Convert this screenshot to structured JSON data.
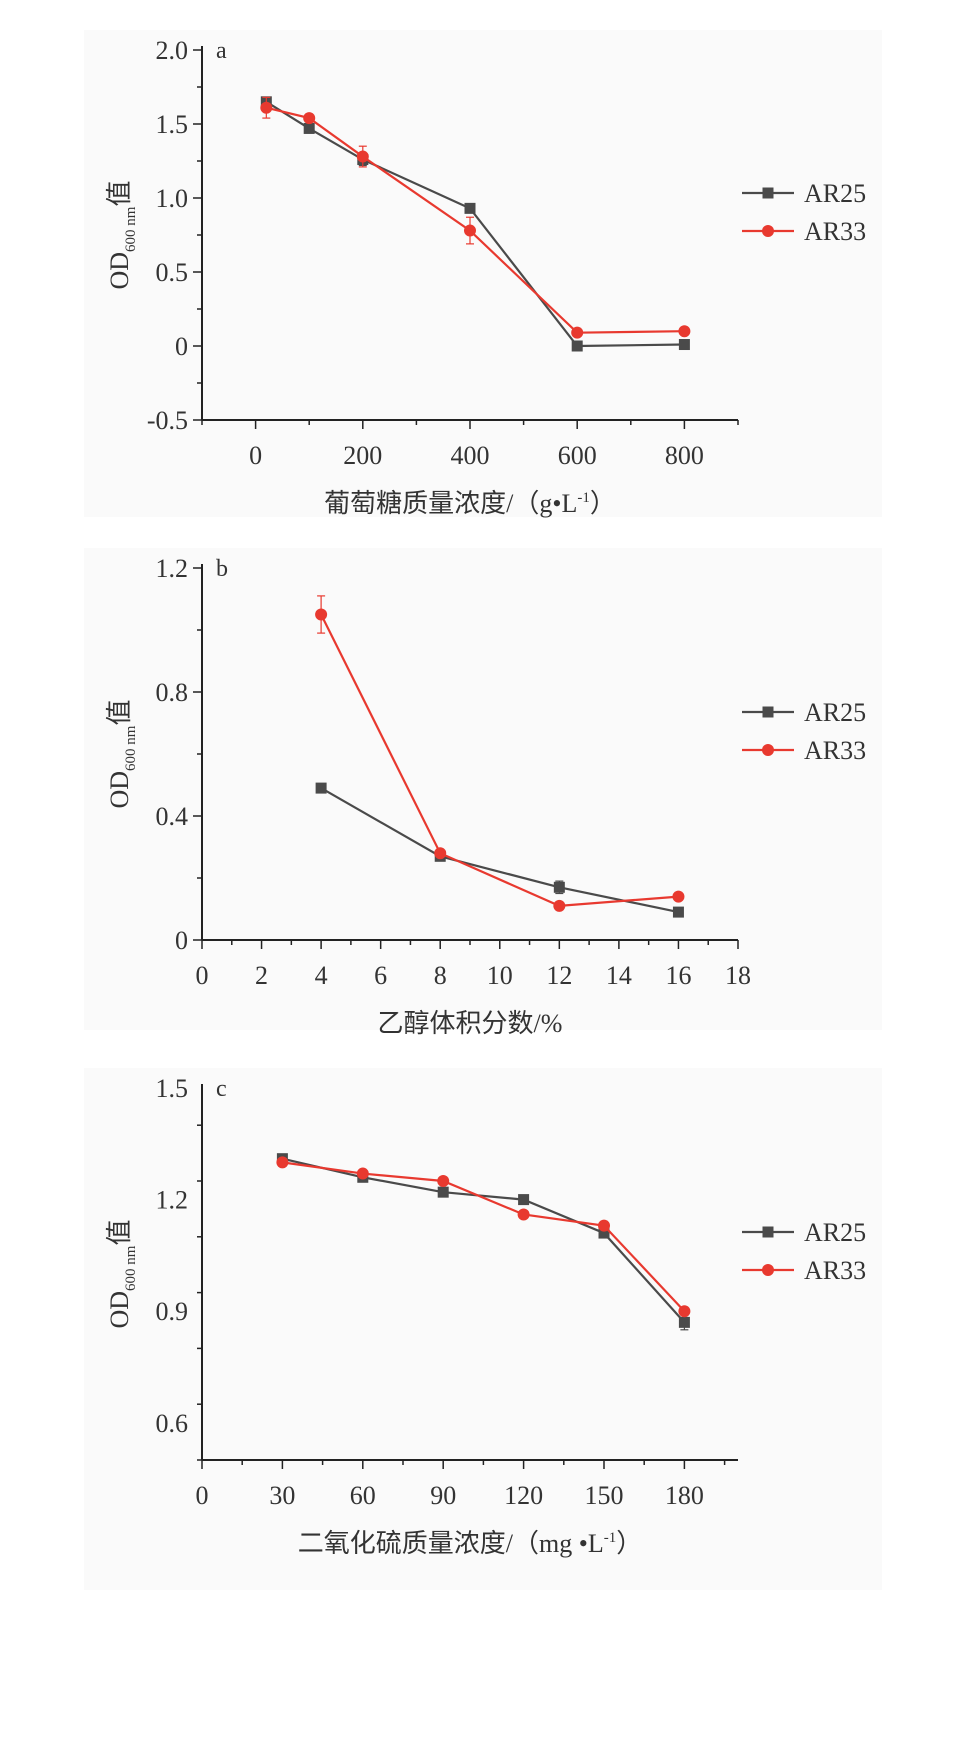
{
  "colors": {
    "AR25": "#4a4a4a",
    "AR33": "#e8392f",
    "panel_bg": "#fafafa",
    "axis": "#222222"
  },
  "chart_data": [
    {
      "type": "line",
      "panel_label": "a",
      "xlabel": "葡萄糖质量浓度/（g•L",
      "xlabel_sup": "-1",
      "xlabel_end": "）",
      "ylabel_main": "OD",
      "ylabel_sub": "600 nm",
      "ylabel_end": "值",
      "xlim": [
        -100,
        900
      ],
      "ylim": [
        -0.5,
        2.0
      ],
      "xticks": [
        0,
        200,
        400,
        600,
        800
      ],
      "xtick_labels": [
        "0",
        "200",
        "400",
        "600",
        "800"
      ],
      "xminor": 100,
      "yticks": [
        -0.5,
        0,
        0.5,
        1.0,
        1.5,
        2.0
      ],
      "ytick_labels": [
        "-0.5",
        "0",
        "0.5",
        "1.0",
        "1.5",
        "2.0"
      ],
      "yminor": 0.25,
      "grid": false,
      "legend": "right",
      "x": [
        20,
        100,
        200,
        400,
        600,
        800
      ],
      "series": [
        {
          "name": "AR25",
          "marker": "square",
          "values": [
            1.65,
            1.47,
            1.26,
            0.93,
            0.0,
            0.01
          ],
          "errors": [
            0.03,
            0.02,
            0.04,
            0.03,
            0.01,
            0.01
          ]
        },
        {
          "name": "AR33",
          "marker": "circle",
          "values": [
            1.61,
            1.54,
            1.28,
            0.78,
            0.09,
            0.1
          ],
          "errors": [
            0.07,
            0.02,
            0.07,
            0.09,
            0.01,
            0.01
          ]
        }
      ]
    },
    {
      "type": "line",
      "panel_label": "b",
      "xlabel": "乙醇体积分数/%",
      "xlabel_sup": "",
      "xlabel_end": "",
      "ylabel_main": "OD",
      "ylabel_sub": "600 nm",
      "ylabel_end": "值",
      "xlim": [
        0,
        18
      ],
      "ylim": [
        0,
        1.2
      ],
      "xticks": [
        0,
        2,
        4,
        6,
        8,
        10,
        12,
        14,
        16,
        18
      ],
      "xtick_labels": [
        "0",
        "2",
        "4",
        "6",
        "8",
        "10",
        "12",
        "14",
        "16",
        "18"
      ],
      "xminor": 1,
      "yticks": [
        0,
        0.4,
        0.8,
        1.2
      ],
      "ytick_labels": [
        "0",
        "0.4",
        "0.8",
        "1.2"
      ],
      "yminor": 0.2,
      "grid": false,
      "legend": "right",
      "x": [
        4,
        8,
        12,
        16
      ],
      "series": [
        {
          "name": "AR25",
          "marker": "square",
          "values": [
            0.49,
            0.27,
            0.17,
            0.09
          ],
          "errors": [
            0.01,
            0.01,
            0.02,
            0.01
          ]
        },
        {
          "name": "AR33",
          "marker": "circle",
          "values": [
            1.05,
            0.28,
            0.11,
            0.14
          ],
          "errors": [
            0.06,
            0.01,
            0.01,
            0.01
          ]
        }
      ]
    },
    {
      "type": "line",
      "panel_label": "c",
      "xlabel": "二氧化硫质量浓度/（mg •L",
      "xlabel_sup": "-1",
      "xlabel_end": "）",
      "ylabel_main": "OD",
      "ylabel_sub": "600 nm",
      "ylabel_end": "值",
      "xlim": [
        0,
        200
      ],
      "ylim": [
        0.5,
        1.5
      ],
      "xticks": [
        0,
        30,
        60,
        90,
        120,
        150,
        180
      ],
      "xtick_labels": [
        "0",
        "30",
        "60",
        "90",
        "120",
        "150",
        "180"
      ],
      "xminor": 15,
      "yticks": [
        0.6,
        0.9,
        1.2,
        1.5
      ],
      "ytick_labels": [
        "0.6",
        "0.9",
        "1.2",
        "1.5"
      ],
      "yminor": 0.15,
      "grid": false,
      "legend": "right",
      "x": [
        30,
        60,
        90,
        120,
        150,
        180
      ],
      "series": [
        {
          "name": "AR25",
          "marker": "square",
          "values": [
            1.31,
            1.26,
            1.22,
            1.2,
            1.11,
            0.87
          ],
          "errors": [
            0.01,
            0.01,
            0.01,
            0.01,
            0.01,
            0.02
          ]
        },
        {
          "name": "AR33",
          "marker": "circle",
          "values": [
            1.3,
            1.27,
            1.25,
            1.16,
            1.13,
            0.9
          ],
          "errors": [
            0.01,
            0.01,
            0.01,
            0.01,
            0.01,
            0.01
          ]
        }
      ]
    }
  ]
}
